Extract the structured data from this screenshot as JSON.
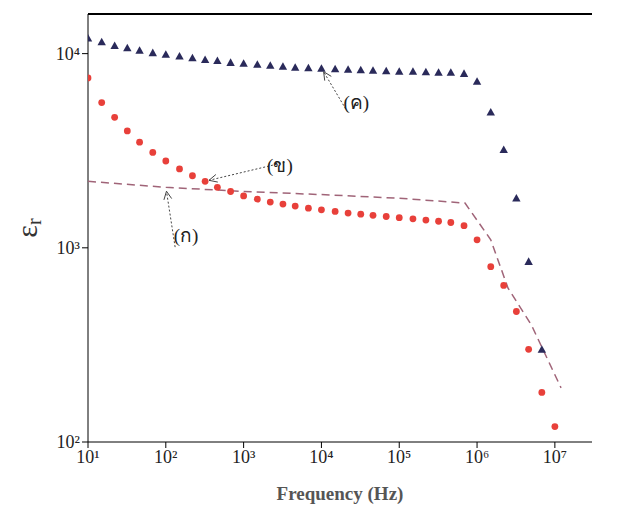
{
  "chart_data": {
    "type": "scatter",
    "log": true,
    "x_label": "Frequency (Hz)",
    "y_label": "εr",
    "xlim": [
      10,
      30000000
    ],
    "ylim": [
      100,
      16000
    ],
    "xticks": [
      {
        "value": 10,
        "label": "10¹"
      },
      {
        "value": 100,
        "label": "10²"
      },
      {
        "value": 1000,
        "label": "10³"
      },
      {
        "value": 10000,
        "label": "10⁴"
      },
      {
        "value": 100000,
        "label": "10⁵"
      },
      {
        "value": 1000000,
        "label": "10⁶"
      },
      {
        "value": 10000000,
        "label": "10⁷"
      }
    ],
    "yticks": [
      {
        "value": 100,
        "label": "10²"
      },
      {
        "value": 1000,
        "label": "10³"
      },
      {
        "value": 10000,
        "label": "10⁴"
      }
    ],
    "series": [
      {
        "name": "(ก)",
        "color": "#a06478",
        "marker": "none",
        "line_style": "dashed",
        "x": [
          10,
          100,
          1000,
          10000,
          100000,
          700000,
          1500000,
          2500000,
          5000000,
          12000000
        ],
        "values": [
          2200,
          2050,
          1950,
          1880,
          1800,
          1700,
          1100,
          620,
          400,
          190
        ],
        "annotation": {
          "x": 100,
          "y": 2050
        }
      },
      {
        "name": "(ข)",
        "color": "#e8403a",
        "marker": "circle",
        "line_style": "none",
        "x": [
          10,
          15,
          22,
          32,
          46,
          68,
          100,
          150,
          220,
          320,
          460,
          680,
          1000,
          1500,
          2200,
          3200,
          4600,
          6800,
          10000,
          15000,
          22000,
          32000,
          46000,
          68000,
          100000,
          150000,
          220000,
          320000,
          460000,
          680000,
          1000000,
          1500000,
          2200000,
          3200000,
          4600000,
          6800000,
          10000000
        ],
        "values": [
          7500,
          5600,
          4700,
          4000,
          3500,
          3100,
          2800,
          2550,
          2350,
          2200,
          2050,
          1950,
          1850,
          1780,
          1720,
          1680,
          1640,
          1600,
          1570,
          1540,
          1510,
          1490,
          1470,
          1450,
          1430,
          1410,
          1390,
          1370,
          1350,
          1300,
          1100,
          800,
          640,
          470,
          300,
          180,
          120
        ],
        "annotation": {
          "x": 320,
          "y": 2200
        }
      },
      {
        "name": "(ค)",
        "color": "#2a2a5a",
        "marker": "triangle",
        "line_style": "none",
        "x": [
          10,
          15,
          22,
          32,
          46,
          68,
          100,
          150,
          220,
          320,
          460,
          680,
          1000,
          1500,
          2200,
          3200,
          4600,
          6800,
          10000,
          15000,
          22000,
          32000,
          46000,
          68000,
          100000,
          150000,
          220000,
          320000,
          460000,
          680000,
          1000000,
          1500000,
          2200000,
          3200000,
          4600000,
          6800000
        ],
        "values": [
          12000,
          11500,
          11000,
          10700,
          10400,
          10100,
          9900,
          9700,
          9500,
          9300,
          9200,
          9000,
          8900,
          8800,
          8700,
          8600,
          8500,
          8450,
          8400,
          8350,
          8300,
          8250,
          8200,
          8150,
          8100,
          8100,
          8050,
          8000,
          8000,
          7900,
          7200,
          5000,
          3200,
          1800,
          850,
          300
        ],
        "annotation": {
          "x": 10000,
          "y": 8400
        }
      }
    ]
  }
}
